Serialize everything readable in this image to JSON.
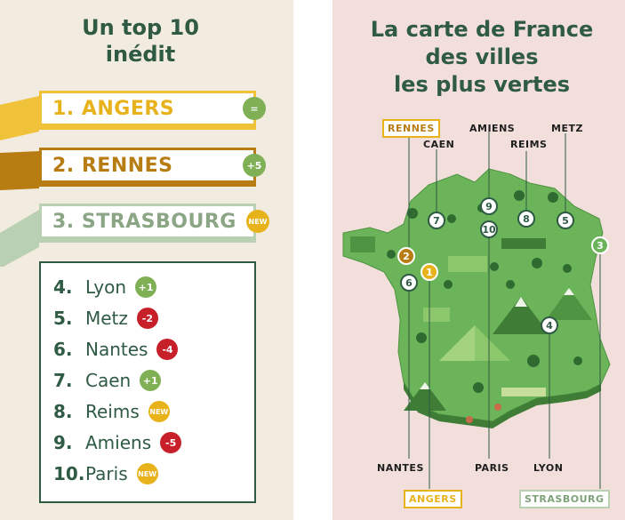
{
  "left": {
    "title_line1": "Un top 10",
    "title_line2": "inédit",
    "podium": [
      {
        "rank": "1.",
        "city": "ANGERS",
        "change": "=",
        "color": "#e8b21b"
      },
      {
        "rank": "2.",
        "city": "RENNES",
        "change": "+5",
        "color": "#b87d12"
      },
      {
        "rank": "3.",
        "city": "STRASBOURG",
        "change": "NEW",
        "color": "#8aa685"
      }
    ],
    "list": [
      {
        "rank": "4.",
        "city": "Lyon",
        "change": "+1",
        "badge": "green"
      },
      {
        "rank": "5.",
        "city": "Metz",
        "change": "-2",
        "badge": "red"
      },
      {
        "rank": "6.",
        "city": "Nantes",
        "change": "-4",
        "badge": "red"
      },
      {
        "rank": "7.",
        "city": "Caen",
        "change": "+1",
        "badge": "green"
      },
      {
        "rank": "8.",
        "city": "Reims",
        "change": "NEW",
        "badge": "yellow"
      },
      {
        "rank": "9.",
        "city": "Amiens",
        "change": "-5",
        "badge": "red"
      },
      {
        "rank": "10.",
        "city": "Paris",
        "change": "NEW",
        "badge": "yellow"
      }
    ]
  },
  "right": {
    "title_line1": "La carte de France",
    "title_line2": "des villes",
    "title_line3": "les plus vertes",
    "labels": {
      "rennes": "RENNES",
      "caen": "CAEN",
      "amiens": "AMIENS",
      "reims": "REIMS",
      "metz": "METZ",
      "nantes": "NANTES",
      "paris": "PARIS",
      "lyon": "LYON",
      "angers": "ANGERS",
      "strasbourg": "STRASBOURG"
    },
    "pins": {
      "p1": "1",
      "p2": "2",
      "p3": "3",
      "p4": "4",
      "p5": "5",
      "p6": "6",
      "p7": "7",
      "p8": "8",
      "p9": "9",
      "p10": "10"
    }
  },
  "colors": {
    "dark_green": "#2f5a43",
    "gold": "#e8b21b",
    "bronze": "#b87d12",
    "sage": "#8aa685",
    "map_green": "#6bb45a",
    "red_badge": "#c8202a"
  }
}
